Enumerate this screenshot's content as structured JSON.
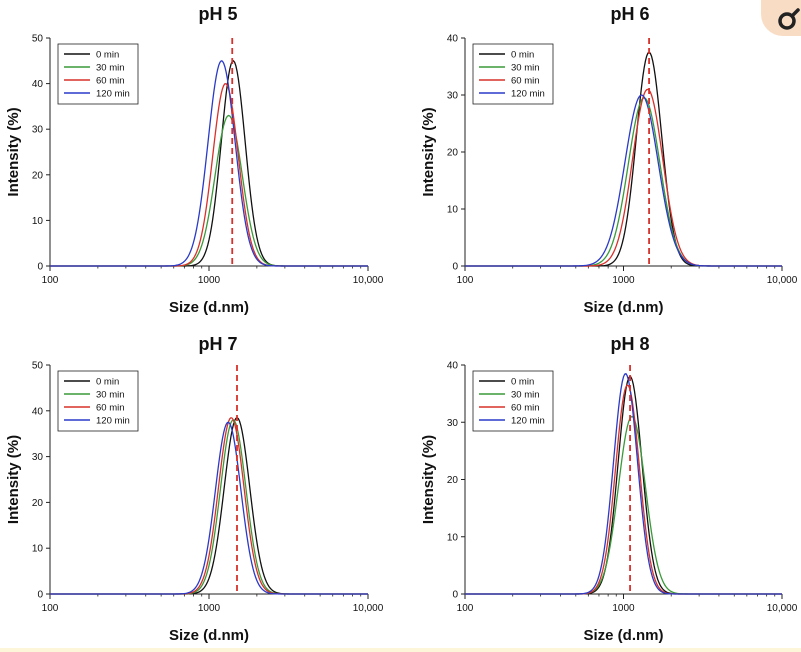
{
  "chart_data": [
    {
      "type": "line",
      "title": "pH 5",
      "xlabel": "Size (d.nm)",
      "ylabel": "Intensity (%)",
      "xscale": "log",
      "xlim": [
        100,
        10000
      ],
      "ylim": [
        0,
        50
      ],
      "xticks": [
        "100",
        "1000",
        "10,000"
      ],
      "yticks": [
        "0",
        "10",
        "20",
        "30",
        "40",
        "50"
      ],
      "legend": "top-left",
      "grid": false,
      "reference_line_x": 1400,
      "reference_line_color": "#d9302a",
      "series": [
        {
          "name": "0 min",
          "color": "#111111",
          "peak_x": 1420,
          "peak_y": 45,
          "width": 0.075
        },
        {
          "name": "30 min",
          "color": "#3a9a3a",
          "peak_x": 1330,
          "peak_y": 33,
          "width": 0.085
        },
        {
          "name": "60 min",
          "color": "#d9302a",
          "peak_x": 1270,
          "peak_y": 40,
          "width": 0.08
        },
        {
          "name": "120 min",
          "color": "#2a3ac8",
          "peak_x": 1200,
          "peak_y": 45,
          "width": 0.085
        }
      ]
    },
    {
      "type": "line",
      "title": "pH 6",
      "xlabel": "Size (d.nm)",
      "ylabel": "Intensity (%)",
      "xscale": "log",
      "xlim": [
        100,
        10000
      ],
      "ylim": [
        0,
        40
      ],
      "xticks": [
        "100",
        "1000",
        "10,000"
      ],
      "yticks": [
        "0",
        "10",
        "20",
        "30",
        "40"
      ],
      "legend": "top-left",
      "grid": false,
      "reference_line_x": 1450,
      "reference_line_color": "#d9302a",
      "series": [
        {
          "name": "0 min",
          "color": "#111111",
          "peak_x": 1450,
          "peak_y": 37.5,
          "width": 0.08
        },
        {
          "name": "30 min",
          "color": "#3a9a3a",
          "peak_x": 1350,
          "peak_y": 29.5,
          "width": 0.1
        },
        {
          "name": "60 min",
          "color": "#d9302a",
          "peak_x": 1420,
          "peak_y": 31,
          "width": 0.095
        },
        {
          "name": "120 min",
          "color": "#2a3ac8",
          "peak_x": 1300,
          "peak_y": 30,
          "width": 0.105
        }
      ]
    },
    {
      "type": "line",
      "title": "pH 7",
      "xlabel": "Size (d.nm)",
      "ylabel": "Intensity (%)",
      "xscale": "log",
      "xlim": [
        100,
        10000
      ],
      "ylim": [
        0,
        50
      ],
      "xticks": [
        "100",
        "1000",
        "10,000"
      ],
      "yticks": [
        "0",
        "10",
        "20",
        "30",
        "40",
        "50"
      ],
      "legend": "top-left",
      "grid": false,
      "reference_line_x": 1500,
      "reference_line_color": "#d9302a",
      "series": [
        {
          "name": "0 min",
          "color": "#111111",
          "peak_x": 1500,
          "peak_y": 38.5,
          "width": 0.08
        },
        {
          "name": "30 min",
          "color": "#3a9a3a",
          "peak_x": 1420,
          "peak_y": 38,
          "width": 0.08
        },
        {
          "name": "60 min",
          "color": "#d9302a",
          "peak_x": 1380,
          "peak_y": 38.5,
          "width": 0.08
        },
        {
          "name": "120 min",
          "color": "#2a3ac8",
          "peak_x": 1320,
          "peak_y": 37.5,
          "width": 0.08
        }
      ]
    },
    {
      "type": "line",
      "title": "pH 8",
      "xlabel": "Size (d.nm)",
      "ylabel": "Intensity (%)",
      "xscale": "log",
      "xlim": [
        100,
        10000
      ],
      "ylim": [
        0,
        40
      ],
      "xticks": [
        "100",
        "1000",
        "10,000"
      ],
      "yticks": [
        "0",
        "10",
        "20",
        "30",
        "40"
      ],
      "legend": "top-left",
      "grid": false,
      "reference_line_x": 1100,
      "reference_line_color": "#d9302a",
      "series": [
        {
          "name": "0 min",
          "color": "#111111",
          "peak_x": 1100,
          "peak_y": 38,
          "width": 0.075
        },
        {
          "name": "30 min",
          "color": "#3a9a3a",
          "peak_x": 1130,
          "peak_y": 31,
          "width": 0.085
        },
        {
          "name": "60 min",
          "color": "#d9302a",
          "peak_x": 1060,
          "peak_y": 36.5,
          "width": 0.075
        },
        {
          "name": "120 min",
          "color": "#2a3ac8",
          "peak_x": 1030,
          "peak_y": 38.5,
          "width": 0.075
        }
      ]
    }
  ]
}
